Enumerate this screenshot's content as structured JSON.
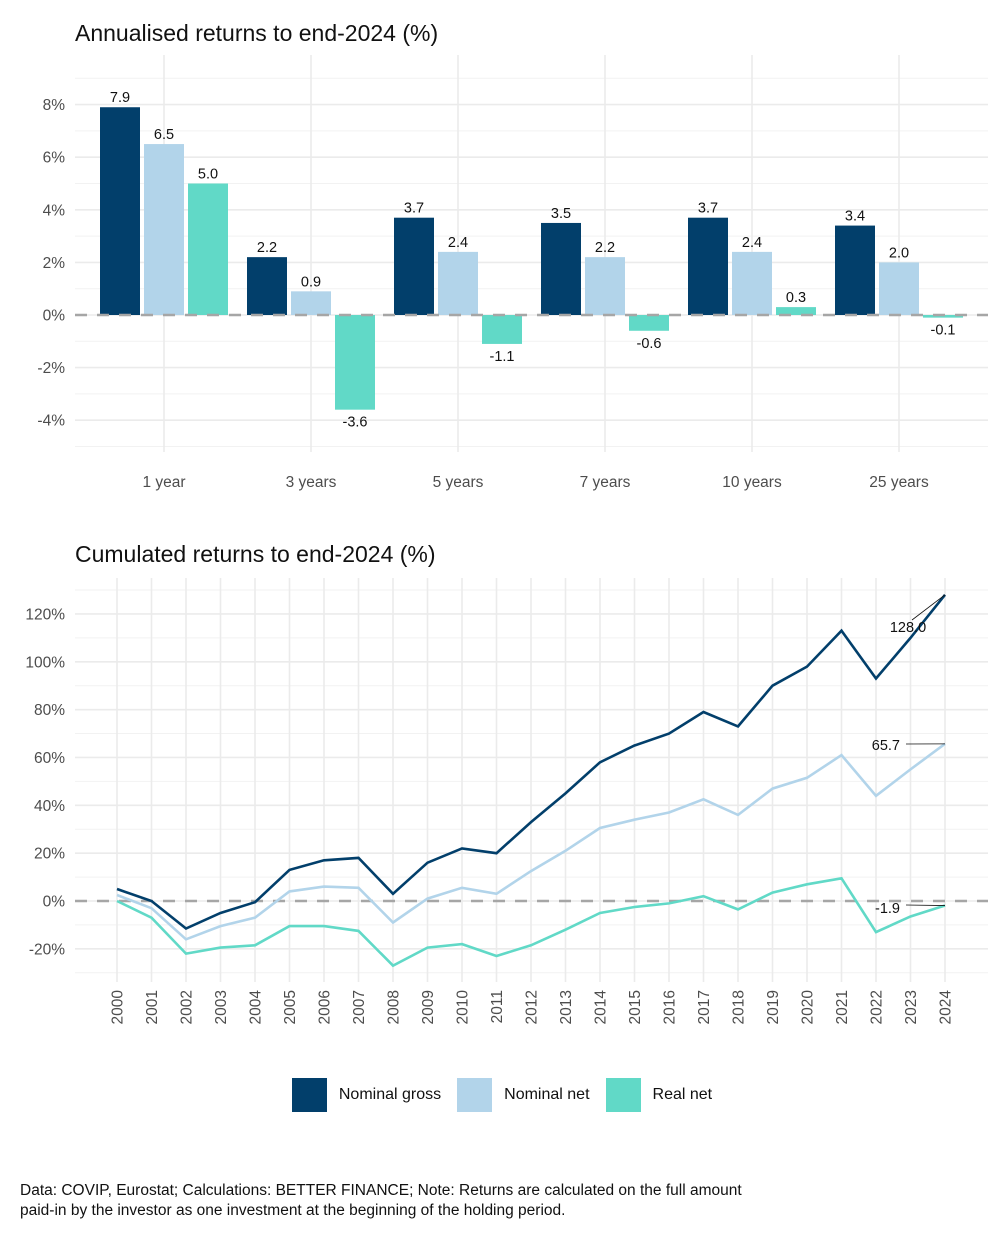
{
  "colors": {
    "nominal_gross": "#023F6B",
    "nominal_net": "#B2D4EA",
    "real_net": "#61D9C7",
    "zero_line": "#A6A6A6"
  },
  "legend": [
    {
      "label": "Nominal gross",
      "color_key": "nominal_gross"
    },
    {
      "label": "Nominal net",
      "color_key": "nominal_net"
    },
    {
      "label": "Real net",
      "color_key": "real_net"
    }
  ],
  "caption": {
    "line1": "Data: COVIP, Eurostat; Calculations: BETTER FINANCE; Note: Returns are calculated on the full amount",
    "line2": "paid-in by the investor as one investment at the beginning of the holding period."
  },
  "chart_data": [
    {
      "type": "bar",
      "title": "Annualised returns to end-2024 (%)",
      "xlabel": "",
      "ylabel": "",
      "categories": [
        "1 year",
        "3 years",
        "5 years",
        "7 years",
        "10 years",
        "25 years"
      ],
      "series": [
        {
          "name": "Nominal gross",
          "values": [
            7.9,
            2.2,
            3.7,
            3.5,
            3.7,
            3.4
          ]
        },
        {
          "name": "Nominal net",
          "values": [
            6.5,
            0.9,
            2.4,
            2.2,
            2.4,
            2.0
          ]
        },
        {
          "name": "Real net",
          "values": [
            5.0,
            -3.6,
            -1.1,
            -0.6,
            0.3,
            -0.1
          ]
        }
      ],
      "data_labels": {
        "Nominal gross": [
          "7.9",
          "2.2",
          "3.7",
          "3.5",
          "3.7",
          "3.4"
        ],
        "Nominal net": [
          "6.5",
          "0.9",
          "2.4",
          "2.2",
          "2.4",
          "2.0"
        ],
        "Real net": [
          "5.0",
          "-3.6",
          "-1.1",
          "-0.6",
          "0.3",
          "-0.1"
        ]
      },
      "y_ticks": [
        8,
        6,
        4,
        2,
        0,
        -2,
        -4
      ],
      "y_tick_labels": [
        "8%",
        "6%",
        "4%",
        "2%",
        "0%",
        "-2%",
        "-4%"
      ],
      "ylim": [
        -5,
        9
      ],
      "reference_line": {
        "value": 0,
        "style": "dashed"
      },
      "grid": true,
      "legend_position": "bottom"
    },
    {
      "type": "line",
      "title": "Cumulated returns to end-2024 (%)",
      "xlabel": "",
      "ylabel": "",
      "x": [
        "2000",
        "2001",
        "2002",
        "2003",
        "2004",
        "2005",
        "2006",
        "2007",
        "2008",
        "2009",
        "2010",
        "2011",
        "2012",
        "2013",
        "2014",
        "2015",
        "2016",
        "2017",
        "2018",
        "2019",
        "2020",
        "2021",
        "2022",
        "2023",
        "2024"
      ],
      "series": [
        {
          "name": "Nominal gross",
          "values": [
            5,
            0,
            -11.5,
            -5,
            -0.5,
            13,
            17,
            18,
            3,
            16,
            22,
            20,
            33,
            45,
            58,
            65,
            70,
            79,
            73,
            90,
            98,
            113,
            93,
            110,
            128.0
          ]
        },
        {
          "name": "Nominal net",
          "values": [
            2.5,
            -3,
            -16,
            -10.5,
            -7,
            4,
            6,
            5.5,
            -9,
            1,
            5.5,
            3,
            12.5,
            21,
            30.5,
            34,
            37,
            42.5,
            36,
            47,
            51.5,
            61,
            44,
            55,
            65.7
          ]
        },
        {
          "name": "Real net",
          "values": [
            0,
            -7,
            -22,
            -19.5,
            -18.5,
            -10.5,
            -10.5,
            -12.5,
            -27,
            -19.5,
            -18,
            -23,
            -18.5,
            -12,
            -5,
            -2.5,
            -1,
            2,
            -3.5,
            3.5,
            7,
            9.5,
            -13,
            -6.5,
            -1.9
          ]
        }
      ],
      "end_labels": [
        {
          "series": "Nominal gross",
          "text": "128.0"
        },
        {
          "series": "Nominal net",
          "text": "65.7"
        },
        {
          "series": "Real net",
          "text": "-1.9"
        }
      ],
      "y_ticks": [
        120,
        100,
        80,
        60,
        40,
        20,
        0,
        -20
      ],
      "y_tick_labels": [
        "120%",
        "100%",
        "80%",
        "60%",
        "40%",
        "20%",
        "0%",
        "-20%"
      ],
      "ylim": [
        -30,
        130
      ],
      "reference_line": {
        "value": 0,
        "style": "dashed"
      },
      "grid": true,
      "legend_position": "bottom"
    }
  ]
}
